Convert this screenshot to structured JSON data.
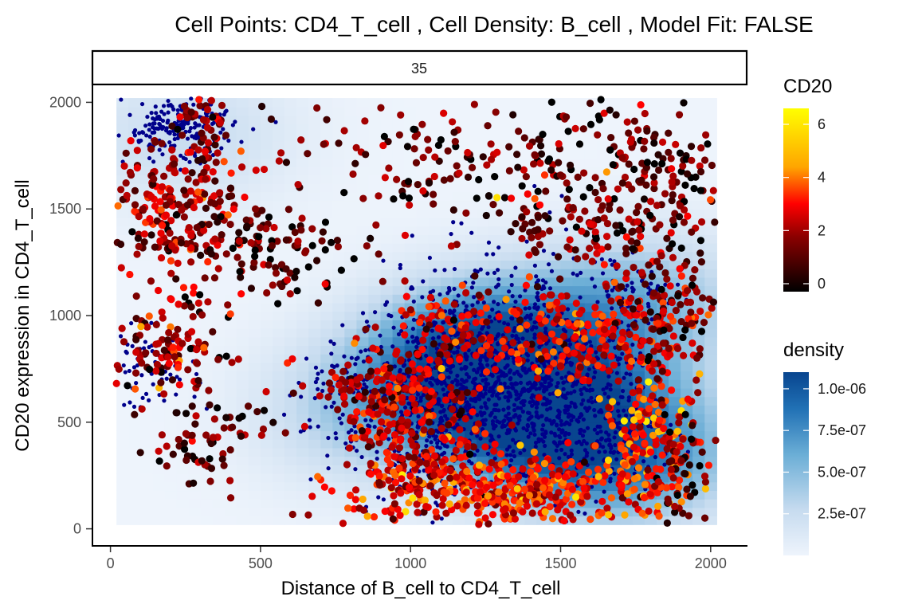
{
  "chart_data": {
    "type": "scatter",
    "title": "Cell Points: CD4_T_cell , Cell Density: B_cell , Model Fit: FALSE",
    "facet_label": "35",
    "xlabel": "Distance of B_cell to CD4_T_cell",
    "ylabel": "CD20 expression in CD4_T_cell",
    "xlim": [
      -60,
      2120
    ],
    "ylim": [
      -80,
      2080
    ],
    "x_ticks": [
      0,
      500,
      1000,
      1500,
      2000
    ],
    "x_tick_labels": [
      "0",
      "500",
      "1000",
      "1500",
      "2000"
    ],
    "y_ticks": [
      0,
      500,
      1000,
      1500,
      2000
    ],
    "y_tick_labels": [
      "0",
      "500",
      "1000",
      "1500",
      "2000"
    ],
    "grid": false,
    "legend_placement": "right",
    "legends": [
      {
        "title": "CD20",
        "kind": "color",
        "range": [
          -0.3,
          6.6
        ],
        "ticks": [
          0,
          2,
          4,
          6
        ],
        "tick_labels": [
          "0",
          "2",
          "4",
          "6"
        ],
        "colors": [
          "#000000",
          "#8b0000",
          "#ff0000",
          "#ffa500",
          "#ffff00"
        ]
      },
      {
        "title": "density",
        "kind": "fill",
        "range": [
          0,
          1.1e-06
        ],
        "ticks": [
          2.5e-07,
          5e-07,
          7.5e-07,
          1e-06
        ],
        "tick_labels": [
          "2.5e-07",
          "5.0e-07",
          "7.5e-07",
          "1.0e-06"
        ],
        "colors": [
          "#eef4fc",
          "#c6dbef",
          "#6baed6",
          "#2171b5",
          "#08458f"
        ]
      }
    ],
    "density_raster": {
      "extent_x": [
        20,
        2020
      ],
      "extent_y": [
        20,
        2020
      ],
      "peaks": [
        {
          "x": 1250,
          "y": 800,
          "value": 1.1e-06
        },
        {
          "x": 1450,
          "y": 500,
          "value": 8.5e-07
        },
        {
          "x": 1750,
          "y": 1050,
          "value": 5e-07
        },
        {
          "x": 1750,
          "y": 350,
          "value": 6e-07
        },
        {
          "x": 850,
          "y": 550,
          "value": 3.5e-07
        },
        {
          "x": 250,
          "y": 1850,
          "value": 2.5e-07
        }
      ]
    },
    "series": [
      {
        "role": "B_cell",
        "color": "#00008b",
        "clusters": [
          {
            "x": 1250,
            "y": 750,
            "sx": 200,
            "sy": 230,
            "n": 900
          },
          {
            "x": 1500,
            "y": 550,
            "sx": 150,
            "sy": 180,
            "n": 350
          },
          {
            "x": 1050,
            "y": 450,
            "sx": 150,
            "sy": 200,
            "n": 250
          },
          {
            "x": 230,
            "y": 1880,
            "sx": 90,
            "sy": 80,
            "n": 220
          },
          {
            "x": 1750,
            "y": 1050,
            "sx": 80,
            "sy": 120,
            "n": 90
          },
          {
            "x": 130,
            "y": 750,
            "sx": 80,
            "sy": 90,
            "n": 60
          },
          {
            "x": 1700,
            "y": 400,
            "sx": 100,
            "sy": 120,
            "n": 90
          },
          {
            "x": 850,
            "y": 700,
            "sx": 120,
            "sy": 80,
            "n": 60
          }
        ]
      },
      {
        "role": "CD4_T_cell",
        "clusters": [
          {
            "x": 1300,
            "y": 180,
            "sx": 250,
            "sy": 90,
            "n": 420,
            "cd20": 3.2
          },
          {
            "x": 1600,
            "y": 900,
            "sx": 200,
            "sy": 150,
            "n": 260,
            "cd20": 2.8
          },
          {
            "x": 1800,
            "y": 400,
            "sx": 80,
            "sy": 150,
            "n": 140,
            "cd20": 3.8
          },
          {
            "x": 1000,
            "y": 450,
            "sx": 120,
            "sy": 160,
            "n": 200,
            "cd20": 2.5
          },
          {
            "x": 1100,
            "y": 900,
            "sx": 120,
            "sy": 100,
            "n": 100,
            "cd20": 2.4
          },
          {
            "x": 900,
            "y": 650,
            "sx": 120,
            "sy": 80,
            "n": 100,
            "cd20": 2.2
          },
          {
            "x": 1350,
            "y": 1750,
            "sx": 480,
            "sy": 180,
            "n": 280,
            "cd20": 0.9
          },
          {
            "x": 1800,
            "y": 1600,
            "sx": 130,
            "sy": 200,
            "n": 120,
            "cd20": 0.8
          },
          {
            "x": 1850,
            "y": 1000,
            "sx": 80,
            "sy": 200,
            "n": 90,
            "cd20": 1.2
          },
          {
            "x": 200,
            "y": 1500,
            "sx": 120,
            "sy": 130,
            "n": 200,
            "cd20": 1.9
          },
          {
            "x": 500,
            "y": 1300,
            "sx": 150,
            "sy": 120,
            "n": 120,
            "cd20": 0.7
          },
          {
            "x": 300,
            "y": 1850,
            "sx": 60,
            "sy": 120,
            "n": 60,
            "cd20": 1.6
          },
          {
            "x": 200,
            "y": 850,
            "sx": 100,
            "sy": 120,
            "n": 120,
            "cd20": 1.9
          },
          {
            "x": 300,
            "y": 400,
            "sx": 120,
            "sy": 110,
            "n": 70,
            "cd20": 0.9
          },
          {
            "x": 1550,
            "y": 1400,
            "sx": 150,
            "sy": 80,
            "n": 70,
            "cd20": 1.3
          },
          {
            "x": 1900,
            "y": 300,
            "sx": 60,
            "sy": 150,
            "n": 60,
            "cd20": 0.6
          }
        ]
      }
    ]
  }
}
